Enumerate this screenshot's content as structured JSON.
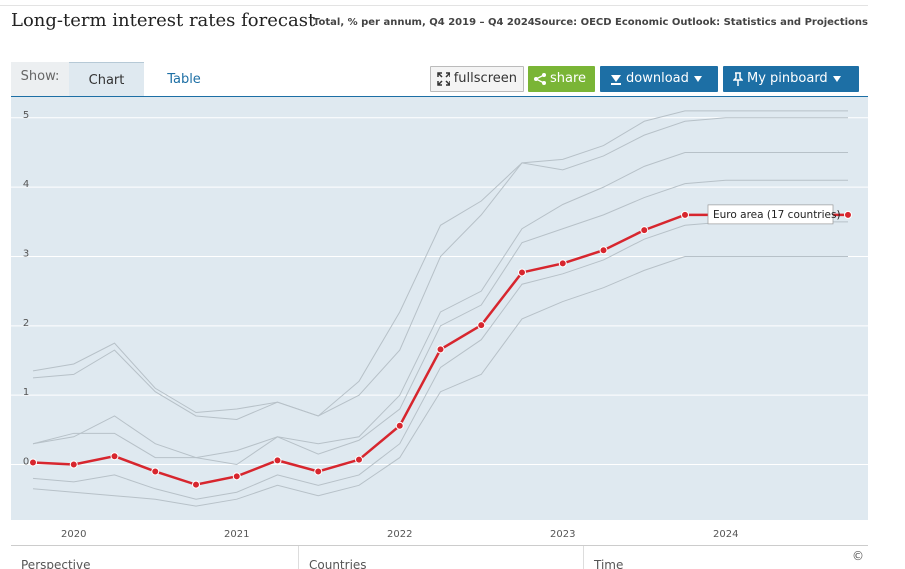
{
  "header": {
    "title": "Long-term interest rates forecast",
    "subtitle": "Total, % per annum, Q4 2019 – Q4 2024",
    "source": "Source: OECD Economic Outlook: Statistics and Projections"
  },
  "toolbar": {
    "show_label": "Show:",
    "tabs": [
      "Chart",
      "Table"
    ],
    "buttons": [
      "fullscreen",
      "share",
      "download",
      "My pinboard"
    ]
  },
  "chart_data": {
    "type": "line",
    "categories": [
      null,
      "2020",
      null,
      null,
      null,
      "2021",
      null,
      null,
      null,
      "2022",
      null,
      null,
      null,
      "2023",
      null,
      null,
      null,
      "2024",
      null,
      null,
      null
    ],
    "ylim": [
      -0.8,
      5.3
    ],
    "yticks": [
      0,
      1,
      2,
      3,
      4,
      5
    ],
    "grid": true,
    "series": [
      {
        "color": "#b7c1c8",
        "values": [
          1.35,
          1.45,
          1.75,
          1.1,
          0.75,
          0.8,
          0.9,
          0.7,
          1.2,
          2.2,
          3.45,
          3.8,
          4.35,
          4.4,
          4.6,
          4.95,
          5.1,
          5.1,
          5.1,
          5.1,
          5.1
        ]
      },
      {
        "color": "#b7c1c8",
        "values": [
          1.25,
          1.3,
          1.65,
          1.05,
          0.7,
          0.65,
          0.9,
          0.7,
          1.0,
          1.65,
          3.0,
          3.6,
          4.35,
          4.25,
          4.45,
          4.75,
          4.95,
          5.0,
          5.0,
          5.0,
          5.0
        ]
      },
      {
        "color": "#b7c1c8",
        "values": [
          0.3,
          0.4,
          0.7,
          0.3,
          0.1,
          0.2,
          0.4,
          0.3,
          0.4,
          1.0,
          2.2,
          2.5,
          3.4,
          3.75,
          4.0,
          4.3,
          4.5,
          4.5,
          4.5,
          4.5,
          4.5
        ]
      },
      {
        "color": "#b7c1c8",
        "values": [
          0.3,
          0.45,
          0.45,
          0.1,
          0.1,
          0.0,
          0.4,
          0.15,
          0.35,
          0.8,
          2.0,
          2.3,
          3.2,
          3.4,
          3.6,
          3.85,
          4.05,
          4.1,
          4.1,
          4.1,
          4.1
        ]
      },
      {
        "color": "#b7c1c8",
        "values": [
          -0.2,
          -0.25,
          -0.15,
          -0.35,
          -0.5,
          -0.4,
          -0.15,
          -0.3,
          -0.15,
          0.3,
          1.4,
          1.8,
          2.6,
          2.75,
          2.95,
          3.25,
          3.45,
          3.5,
          3.5,
          3.5,
          3.5
        ]
      },
      {
        "color": "#b7c1c8",
        "values": [
          -0.35,
          -0.4,
          -0.45,
          -0.5,
          -0.6,
          -0.5,
          -0.3,
          -0.45,
          -0.3,
          0.1,
          1.05,
          1.3,
          2.1,
          2.35,
          2.55,
          2.8,
          3.0,
          3.0,
          3.0,
          3.0,
          3.0
        ]
      },
      {
        "name": "Euro area (17 countries)",
        "color": "#d7262e",
        "values": [
          0.03,
          0.0,
          0.12,
          -0.1,
          -0.29,
          -0.17,
          0.06,
          -0.1,
          0.07,
          0.56,
          1.66,
          2.01,
          2.77,
          2.9,
          3.09,
          3.38,
          3.6,
          3.6,
          3.6,
          3.6,
          3.6
        ]
      }
    ]
  },
  "footer": {
    "panels": [
      "Perspective",
      "Countries",
      "Time"
    ],
    "copyright": "©"
  }
}
